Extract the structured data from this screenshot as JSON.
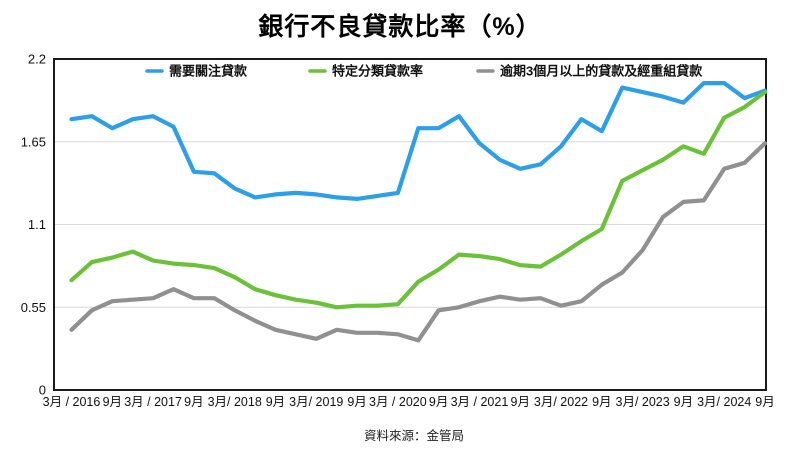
{
  "title": "銀行不良貸款比率（%）",
  "source_note": "資料來源：金管局",
  "chart_data": {
    "type": "line",
    "title": "銀行不良貸款比率（%）",
    "source": "資料來源：金管局",
    "xlabel": "",
    "ylabel": "",
    "ylim": [
      0,
      2.2
    ],
    "y_ticks": [
      0,
      0.55,
      1.1,
      1.65,
      2.2
    ],
    "y_tick_labels": [
      "0",
      "0.55",
      "1.1",
      "1.65",
      "2.2"
    ],
    "grid": "horizontal",
    "legend_position": "top-inside",
    "x_labels": [
      "3月 / 2016",
      "9月",
      "3月 / 2017",
      "9月",
      "3月/ 2018",
      "9月",
      "3月/ 2019",
      "9月",
      "3月 / 2020",
      "9月",
      "3月 / 2021",
      "9月",
      "3月/ 2022",
      "9月",
      "3月/ 2023",
      "9月",
      "3月/ 2024",
      "9月"
    ],
    "x_quarters": [
      "2016-03",
      "2016-06",
      "2016-09",
      "2016-12",
      "2017-03",
      "2017-06",
      "2017-09",
      "2017-12",
      "2018-03",
      "2018-06",
      "2018-09",
      "2018-12",
      "2019-03",
      "2019-06",
      "2019-09",
      "2019-12",
      "2020-03",
      "2020-06",
      "2020-09",
      "2020-12",
      "2021-03",
      "2021-06",
      "2021-09",
      "2021-12",
      "2022-03",
      "2022-06",
      "2022-09",
      "2022-12",
      "2023-03",
      "2023-06",
      "2023-09",
      "2023-12",
      "2024-03",
      "2024-06",
      "2024-09"
    ],
    "series": [
      {
        "name": "需要關注貸款",
        "color": "#2D9FE6",
        "values": [
          1.8,
          1.82,
          1.74,
          1.8,
          1.82,
          1.75,
          1.45,
          1.44,
          1.34,
          1.28,
          1.3,
          1.31,
          1.3,
          1.28,
          1.27,
          1.29,
          1.31,
          1.74,
          1.74,
          1.82,
          1.64,
          1.53,
          1.47,
          1.5,
          1.62,
          1.8,
          1.72,
          2.01,
          1.98,
          1.95,
          1.91,
          2.04,
          2.04,
          1.94,
          1.99
        ]
      },
      {
        "name": "特定分類貸款率",
        "color": "#6CC13B",
        "values": [
          0.73,
          0.85,
          0.88,
          0.92,
          0.86,
          0.84,
          0.83,
          0.81,
          0.75,
          0.67,
          0.63,
          0.6,
          0.58,
          0.55,
          0.56,
          0.56,
          0.57,
          0.72,
          0.8,
          0.9,
          0.89,
          0.87,
          0.83,
          0.82,
          0.9,
          0.99,
          1.07,
          1.39,
          1.46,
          1.53,
          1.62,
          1.57,
          1.81,
          1.88,
          1.98
        ]
      },
      {
        "name": "逾期3個月以上的貸款及經重組貸款",
        "color": "#909090",
        "values": [
          0.4,
          0.53,
          0.59,
          0.6,
          0.61,
          0.67,
          0.61,
          0.61,
          0.53,
          0.46,
          0.4,
          0.37,
          0.34,
          0.4,
          0.38,
          0.38,
          0.37,
          0.33,
          0.53,
          0.55,
          0.59,
          0.62,
          0.6,
          0.61,
          0.56,
          0.59,
          0.7,
          0.78,
          0.93,
          1.15,
          1.25,
          1.26,
          1.47,
          1.51,
          1.64
        ]
      }
    ]
  }
}
